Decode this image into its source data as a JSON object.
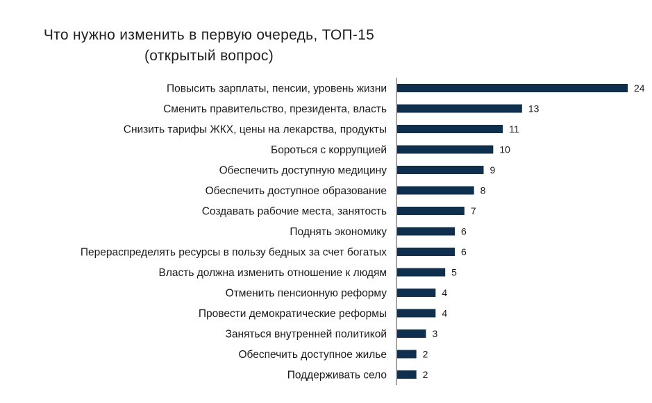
{
  "title": {
    "line1": "Что нужно изменить в первую очередь, ТОП-15",
    "line2": "(открытый вопрос)"
  },
  "colors": {
    "bar": "#0e2f4d",
    "axis": "#4a4a4a"
  },
  "chart_data": {
    "type": "bar",
    "orientation": "horizontal",
    "title": "Что нужно изменить в первую очередь, ТОП-15 (открытый вопрос)",
    "categories": [
      "Повысить зарплаты, пенсии, уровень жизни",
      "Сменить правительство, президента, власть",
      "Снизить тарифы ЖКХ, цены на лекарства, продукты",
      "Бороться с коррупцией",
      "Обеспечить доступную медицину",
      "Обеспечить доступное образование",
      "Создавать рабочие места, занятость",
      "Поднять экономику",
      "Перераспределять ресурсы в пользу бедных за  счет богатых",
      "Власть должна изменить отношение к людям",
      "Отменить пенсионную реформу",
      "Провести демократические реформы",
      "Заняться внутренней политикой",
      "Обеспечить доступное жилье",
      "Поддерживать село"
    ],
    "values": [
      24,
      13,
      11,
      10,
      9,
      8,
      7,
      6,
      6,
      5,
      4,
      4,
      3,
      2,
      2
    ],
    "data_labels": [
      "24",
      "13",
      "11",
      "10",
      "9",
      "8",
      "7",
      "6",
      "6",
      "5",
      "4",
      "4",
      "3",
      "2",
      "2"
    ],
    "xlim": [
      0,
      24
    ],
    "grid": false,
    "legend": "none"
  }
}
